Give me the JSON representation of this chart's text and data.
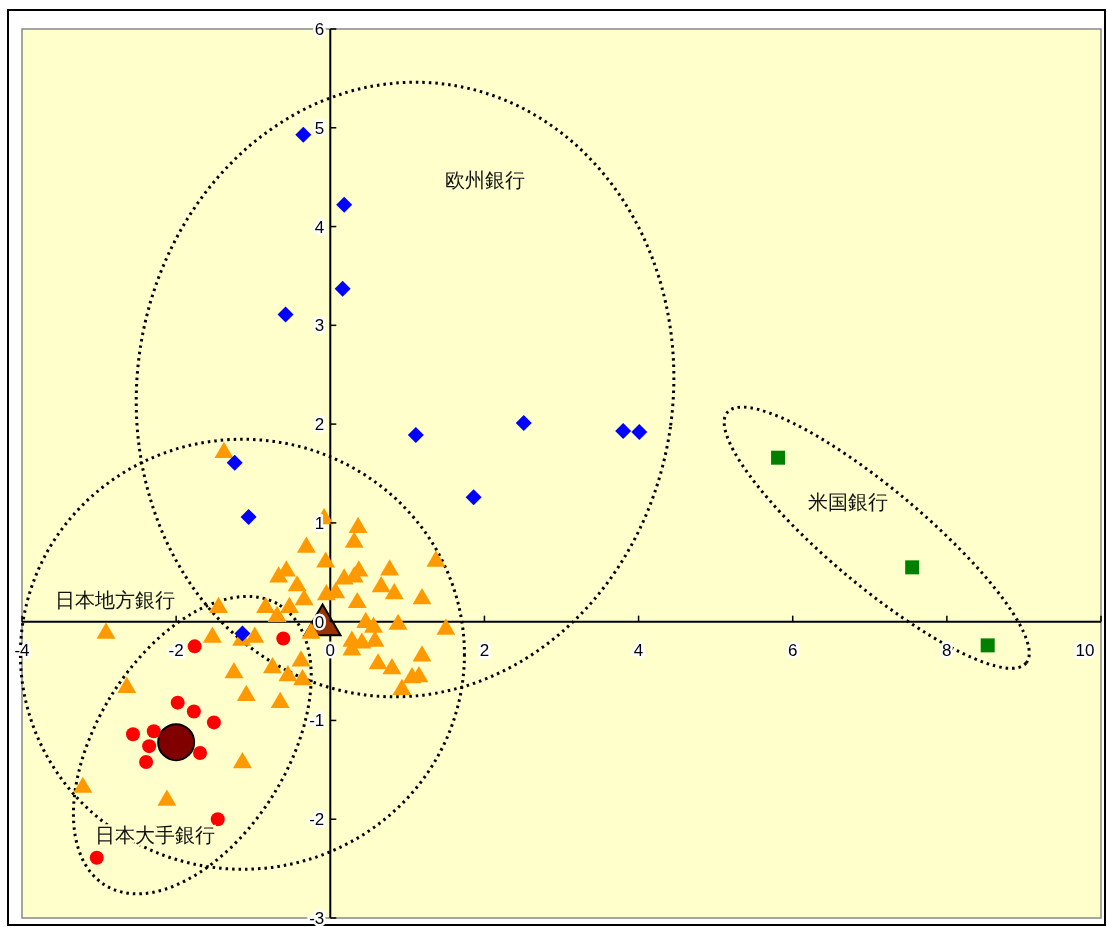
{
  "chart_data": {
    "type": "scatter",
    "xlim": [
      -4,
      10
    ],
    "ylim": [
      -3,
      6
    ],
    "xticks": [
      -4,
      -2,
      0,
      2,
      4,
      6,
      8,
      10
    ],
    "yticks": [
      -3,
      -2,
      -1,
      0,
      1,
      2,
      3,
      4,
      5,
      6
    ],
    "grid": false,
    "annotations": [
      "欧州銀行",
      "米国銀行",
      "日本地方銀行",
      "日本大手銀行"
    ],
    "series": [
      {
        "color": "#ff9900",
        "marker": "triangle",
        "x": [
          -1.38,
          -0.08,
          0.36,
          0.31,
          -0.31,
          -0.06,
          1.37,
          -0.67,
          -0.57,
          -0.43,
          0.18,
          0.31,
          0.37,
          0.77,
          0.66,
          0.83,
          -0.34,
          -0.05,
          0.07,
          0.35,
          1.19,
          -1.45,
          -0.84,
          -0.53,
          -0.69,
          0.46,
          0.56,
          0.88,
          1.5,
          -2.91,
          -1.53,
          -0.98,
          -1.15,
          -0.25,
          0.28,
          0.41,
          0.58,
          0.28,
          1.19,
          -0.75,
          -0.38,
          0.62,
          0.8,
          -0.55,
          -0.36,
          -1.25,
          1.06,
          1.15,
          0.93,
          -2.64,
          -1.09,
          -0.65,
          -1.14,
          -3.21,
          -2.12
        ],
        "values": [
          1.73,
          1.06,
          0.97,
          0.82,
          0.77,
          0.62,
          0.63,
          0.47,
          0.53,
          0.38,
          0.45,
          0.47,
          0.53,
          0.54,
          0.37,
          0.3,
          0.24,
          0.29,
          0.31,
          0.21,
          0.25,
          0.16,
          0.16,
          0.16,
          0.07,
          0.01,
          -0.04,
          -0.01,
          -0.06,
          -0.1,
          -0.14,
          -0.14,
          -0.17,
          -0.1,
          -0.18,
          -0.2,
          -0.18,
          -0.27,
          -0.33,
          -0.45,
          -0.38,
          -0.41,
          -0.46,
          -0.53,
          -0.57,
          -0.5,
          -0.55,
          -0.54,
          -0.67,
          -0.65,
          -0.73,
          -0.8,
          -1.41,
          -1.66,
          -1.79
        ]
      },
      {
        "color": "#0000ff",
        "marker": "diamond",
        "x": [
          -0.35,
          0.18,
          0.16,
          -0.58,
          1.11,
          2.51,
          3.8,
          4.01,
          1.86,
          -1.24,
          -1.06,
          -1.14
        ],
        "values": [
          4.93,
          4.22,
          3.37,
          3.11,
          1.89,
          2.01,
          1.93,
          1.92,
          1.26,
          1.61,
          1.06,
          -0.12
        ]
      },
      {
        "color": "#008000",
        "marker": "square",
        "x": [
          5.81,
          7.55,
          8.53
        ],
        "values": [
          1.66,
          0.55,
          -0.24
        ]
      },
      {
        "color": "#ff0000",
        "marker": "circle",
        "x": [
          -1.76,
          -0.61,
          -1.98,
          -1.77,
          -1.51,
          -2.56,
          -2.29,
          -2.35,
          -1.69,
          -2.39,
          -1.46,
          -3.03
        ],
        "values": [
          -0.25,
          -0.17,
          -0.82,
          -0.91,
          -1.02,
          -1.14,
          -1.11,
          -1.26,
          -1.33,
          -1.42,
          -2.0,
          -2.39
        ]
      },
      {
        "color": "#800000",
        "marker": "circle",
        "x": [
          -2.0
        ],
        "values": [
          -1.22
        ]
      },
      {
        "color": "#993300",
        "marker": "triangle",
        "x": [
          -0.1
        ],
        "values": [
          0.0
        ]
      }
    ]
  }
}
